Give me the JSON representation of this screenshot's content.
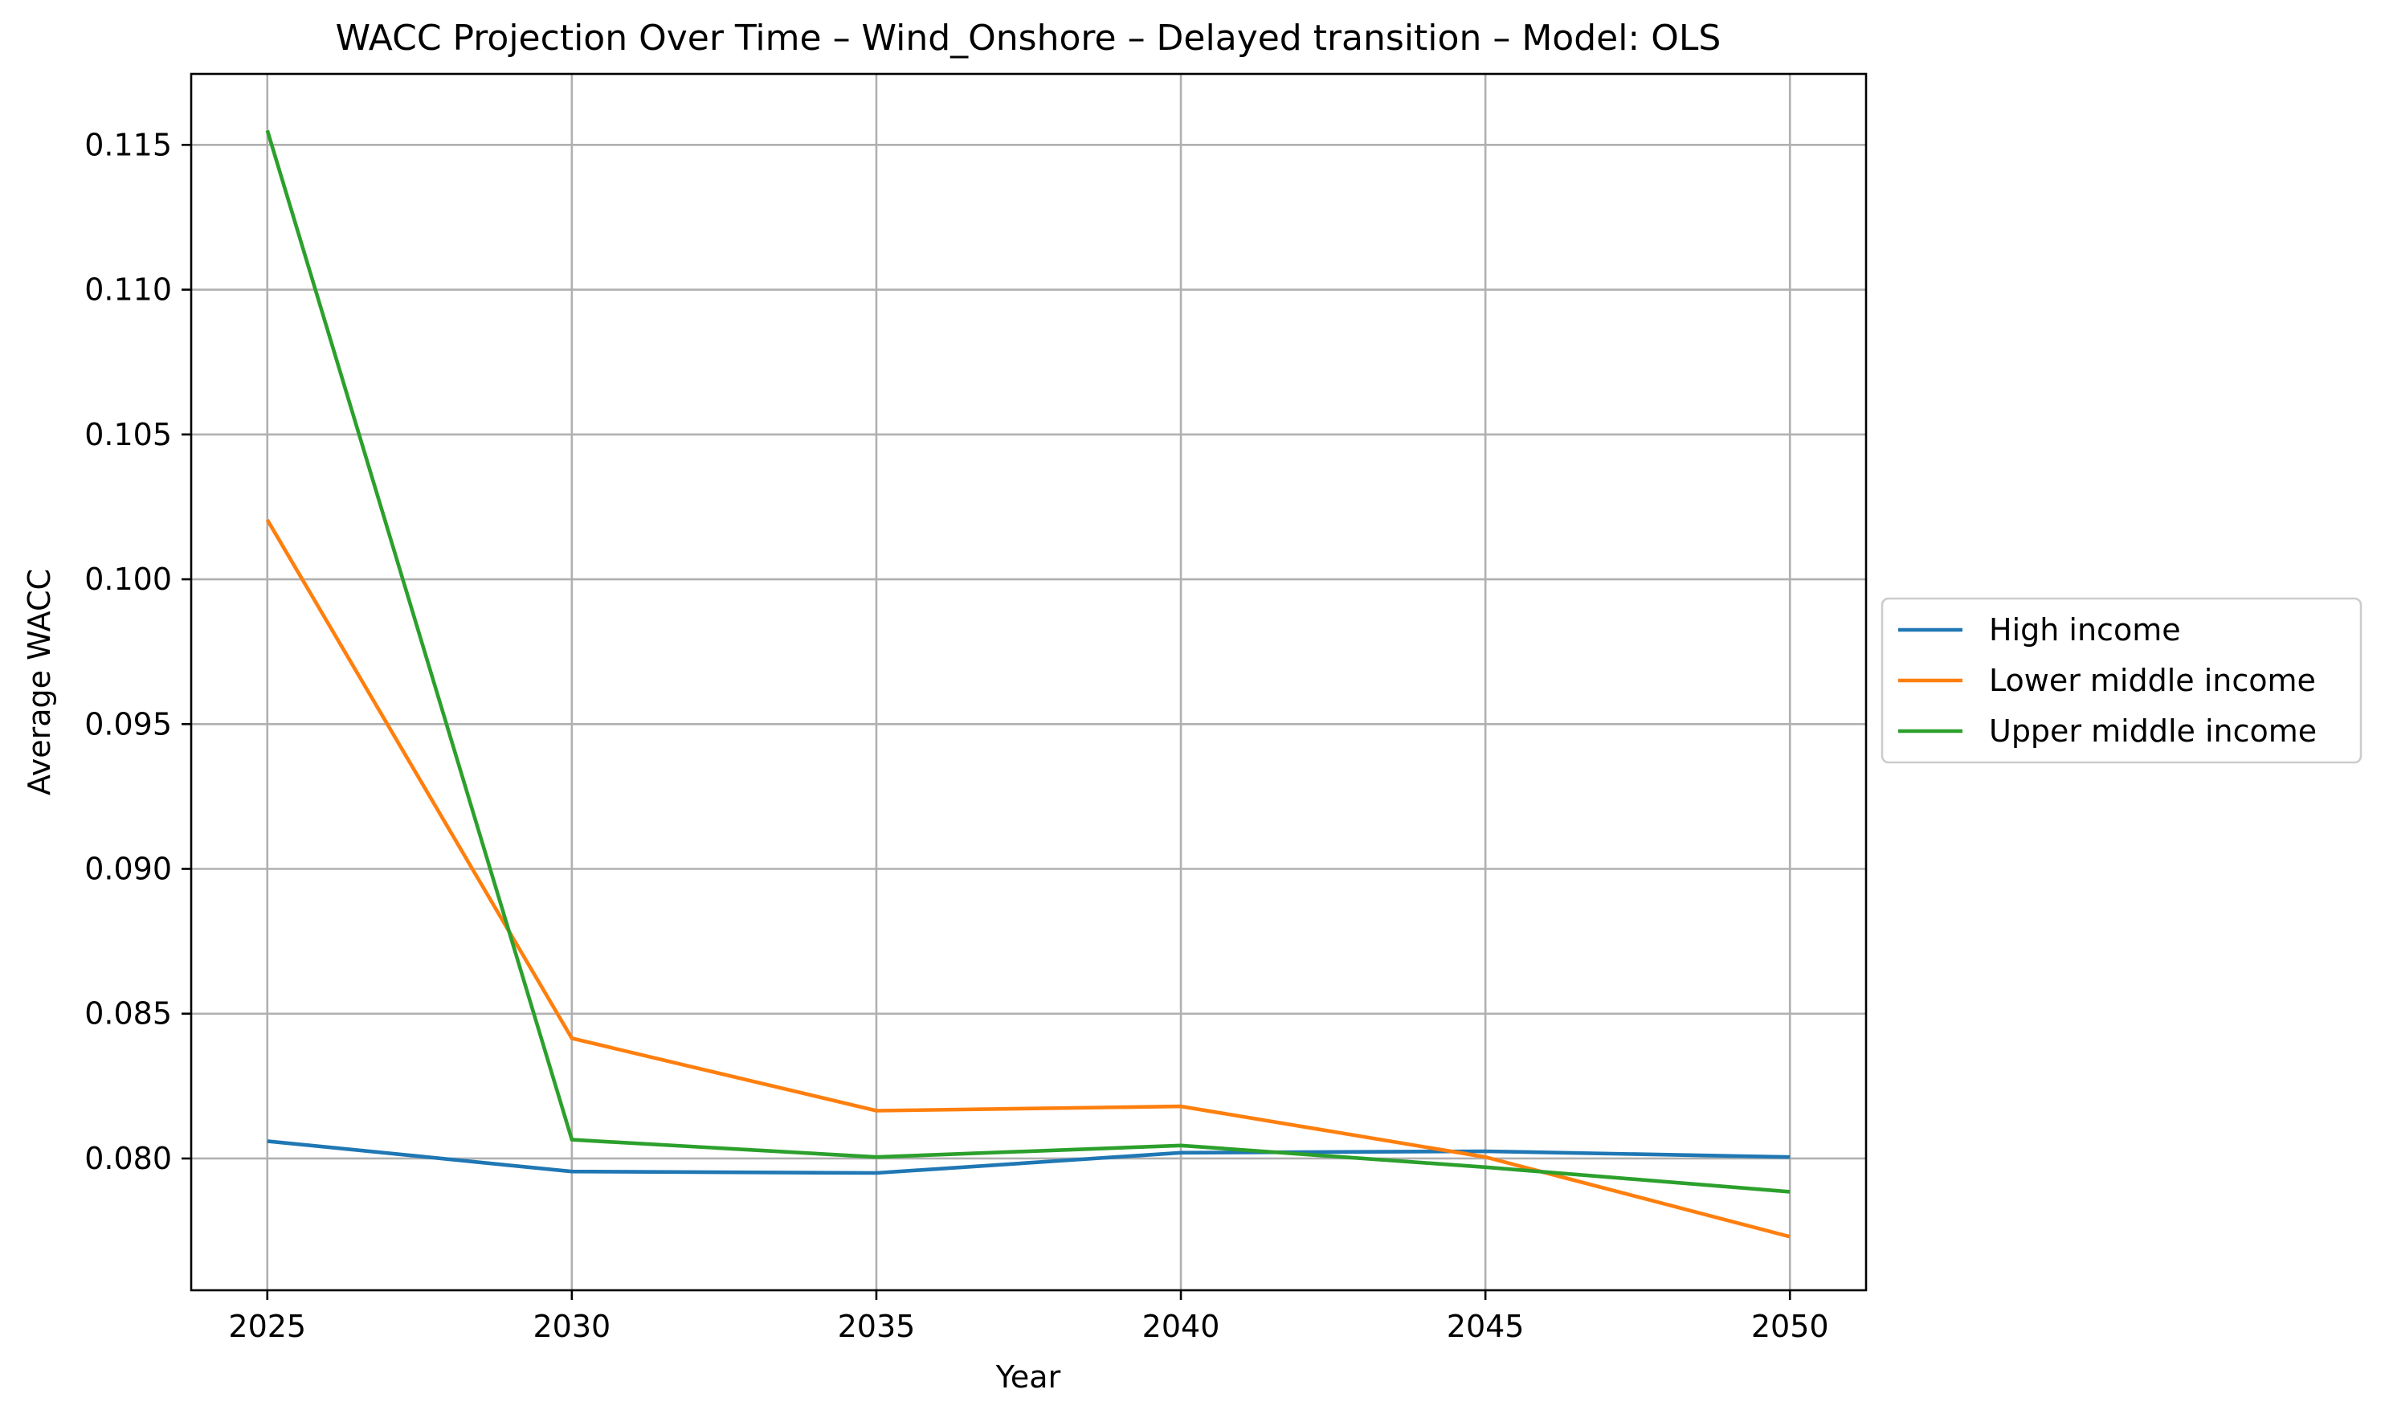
{
  "chart_data": {
    "type": "line",
    "title": "WACC Projection Over Time – Wind_Onshore – Delayed transition – Model: OLS",
    "xlabel": "Year",
    "ylabel": "Average WACC",
    "x": [
      2025,
      2030,
      2035,
      2040,
      2045,
      2050
    ],
    "x_ticks": [
      "2025",
      "2030",
      "2035",
      "2040",
      "2045",
      "2050"
    ],
    "y_ticks": [
      "0.080",
      "0.085",
      "0.090",
      "0.095",
      "0.100",
      "0.105",
      "0.110",
      "0.115"
    ],
    "y_tick_values": [
      0.08,
      0.085,
      0.09,
      0.095,
      0.1,
      0.105,
      0.11,
      0.115
    ],
    "xlim": [
      2023.75,
      2051.25
    ],
    "ylim": [
      0.07545,
      0.11745
    ],
    "grid": true,
    "legend_placement": "center-right outside",
    "series": [
      {
        "name": "High income",
        "color": "#1f77b4",
        "values": [
          0.0806,
          0.07955,
          0.0795,
          0.0802,
          0.08025,
          0.08005
        ]
      },
      {
        "name": "Lower middle income",
        "color": "#ff7f0e",
        "values": [
          0.10205,
          0.08415,
          0.08165,
          0.0818,
          0.08005,
          0.0773
        ]
      },
      {
        "name": "Upper middle income",
        "color": "#2ca02c",
        "values": [
          0.1155,
          0.08065,
          0.08005,
          0.08045,
          0.0797,
          0.07885
        ]
      }
    ]
  }
}
